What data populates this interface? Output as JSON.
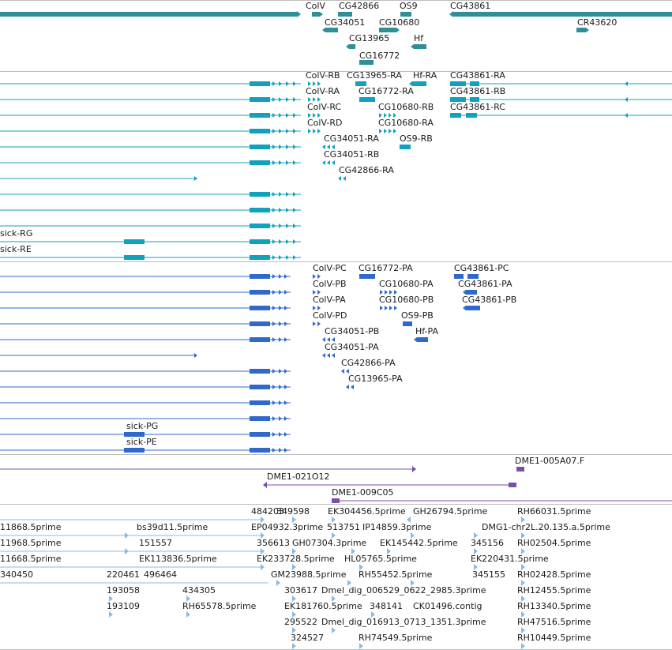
{
  "colors": {
    "gene": "#2e8f96",
    "flybase_rna": "#0fa2bf",
    "protein": "#2f69cc",
    "bac": "#7b4fa6",
    "est": "#8cbadf",
    "separator": "#bdbdbd"
  },
  "tracks": [
    {
      "id": "genes",
      "color": "gene",
      "items": [
        {
          "label": "ColV"
        },
        {
          "label": "CG42866"
        },
        {
          "label": "OS9"
        },
        {
          "label": "CG43861"
        },
        {
          "label": "CG34051"
        },
        {
          "label": "CG10680"
        },
        {
          "label": "CR43620"
        },
        {
          "label": "CG13965"
        },
        {
          "label": "Hf"
        },
        {
          "label": "CG16772"
        }
      ]
    },
    {
      "id": "transcripts",
      "color": "flybase_rna",
      "items": [
        {
          "label": "ColV-RB"
        },
        {
          "label": "CG13965-RA"
        },
        {
          "label": "Hf-RA"
        },
        {
          "label": "CG43861-RA"
        },
        {
          "label": "ColV-RA"
        },
        {
          "label": "CG16772-RA"
        },
        {
          "label": "CG43861-RB"
        },
        {
          "label": "ColV-RC"
        },
        {
          "label": "CG10680-RB"
        },
        {
          "label": "CG43861-RC"
        },
        {
          "label": "ColV-RD"
        },
        {
          "label": "CG10680-RA"
        },
        {
          "label": "CG34051-RA"
        },
        {
          "label": "OS9-RB"
        },
        {
          "label": "CG34051-RB"
        },
        {
          "label": "CG42866-RA"
        },
        {
          "label": "sick-RG"
        },
        {
          "label": "sick-RE"
        }
      ]
    },
    {
      "id": "proteins",
      "color": "protein",
      "items": [
        {
          "label": "ColV-PC"
        },
        {
          "label": "CG16772-PA"
        },
        {
          "label": "CG43861-PC"
        },
        {
          "label": "ColV-PB"
        },
        {
          "label": "CG10680-PA"
        },
        {
          "label": "CG43861-PA"
        },
        {
          "label": "ColV-PA"
        },
        {
          "label": "CG10680-PB"
        },
        {
          "label": "CG43861-PB"
        },
        {
          "label": "ColV-PD"
        },
        {
          "label": "OS9-PB"
        },
        {
          "label": "CG34051-PB"
        },
        {
          "label": "Hf-PA"
        },
        {
          "label": "CG34051-PA"
        },
        {
          "label": "CG42866-PA"
        },
        {
          "label": "CG13965-PA"
        },
        {
          "label": "sick-PG"
        },
        {
          "label": "sick-PE"
        }
      ]
    },
    {
      "id": "bac",
      "color": "bac",
      "items": [
        {
          "label": "DME1-005A07.F"
        },
        {
          "label": "DME1-021O12"
        },
        {
          "label": "DME1-009C05"
        }
      ]
    },
    {
      "id": "est",
      "color": "est",
      "items": [
        {
          "label": "484203"
        },
        {
          "label": "349598"
        },
        {
          "label": "EK304456.5prime"
        },
        {
          "label": "GH26794.5prime"
        },
        {
          "label": "RH66031.5prime"
        },
        {
          "label": "11868.5prime"
        },
        {
          "label": "bs39d11.5prime"
        },
        {
          "label": "EP04932.3prime"
        },
        {
          "label": "513751"
        },
        {
          "label": "IP14859.3prime"
        },
        {
          "label": "DMG1-chr2L.20.135.a.5prime"
        },
        {
          "label": "11968.5prime"
        },
        {
          "label": "151557"
        },
        {
          "label": "356613"
        },
        {
          "label": "GH07304.3prime"
        },
        {
          "label": "EK145442.5prime"
        },
        {
          "label": "345156"
        },
        {
          "label": "RH02504.5prime"
        },
        {
          "label": "11668.5prime"
        },
        {
          "label": "EK113836.5prime"
        },
        {
          "label": "EK233728.5prime"
        },
        {
          "label": "HL05765.5prime"
        },
        {
          "label": "EK220431.5prime"
        },
        {
          "label": "340450"
        },
        {
          "label": "220461"
        },
        {
          "label": "496464"
        },
        {
          "label": "GM23988.5prime"
        },
        {
          "label": "RH55452.5prime"
        },
        {
          "label": "345155"
        },
        {
          "label": "RH02428.5prime"
        },
        {
          "label": "193058"
        },
        {
          "label": "434305"
        },
        {
          "label": "303617"
        },
        {
          "label": "Dmel_dig_006529_0622_2985.3prime"
        },
        {
          "label": "RH12455.5prime"
        },
        {
          "label": "193109"
        },
        {
          "label": "RH65578.5prime"
        },
        {
          "label": "EK181760.5prime"
        },
        {
          "label": "348141"
        },
        {
          "label": "CK01496.contig"
        },
        {
          "label": "RH13340.5prime"
        },
        {
          "label": "295522"
        },
        {
          "label": "Dmel_dig_016913_0713_1351.3prime"
        },
        {
          "label": "RH47516.5prime"
        },
        {
          "label": "324527"
        },
        {
          "label": "RH74549.5prime"
        },
        {
          "label": "RH10449.5prime"
        }
      ]
    }
  ]
}
